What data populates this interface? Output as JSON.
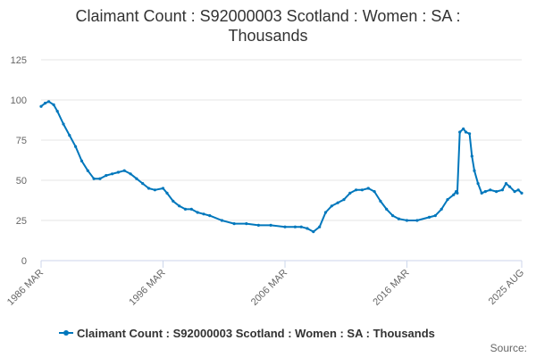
{
  "chart_data": {
    "type": "line",
    "title_lines": [
      "Claimant Count : S92000003 Scotland : Women : SA :",
      "Thousands"
    ],
    "x_tick_labels": [
      "1986 MAR",
      "1996 MAR",
      "2006 MAR",
      "2016 MAR",
      "2025 AUG"
    ],
    "x_tick_values": [
      1986.17,
      1996.17,
      2006.17,
      2016.17,
      2025.58
    ],
    "xlim": [
      1986.17,
      2025.58
    ],
    "ylim": [
      0,
      125
    ],
    "y_ticks": [
      0,
      25,
      50,
      75,
      100,
      125
    ],
    "grid": true,
    "legend_position": "bottom-center",
    "series": [
      {
        "name": "Claimant Count : S92000003 Scotland : Women : SA : Thousands",
        "color": "#0077bc",
        "x": [
          1986.17,
          1986.5,
          1986.8,
          1987.2,
          1987.5,
          1988.0,
          1988.5,
          1989.0,
          1989.5,
          1990.0,
          1990.5,
          1991.0,
          1991.5,
          1992.0,
          1992.5,
          1993.0,
          1993.5,
          1994.0,
          1994.5,
          1995.0,
          1995.5,
          1996.17,
          1996.5,
          1997.0,
          1997.5,
          1998.0,
          1998.5,
          1999.0,
          1999.5,
          2000.0,
          2001.0,
          2002.0,
          2003.0,
          2004.0,
          2005.0,
          2006.17,
          2007.0,
          2007.5,
          2008.0,
          2008.5,
          2009.0,
          2009.5,
          2010.0,
          2010.5,
          2011.0,
          2011.5,
          2012.0,
          2012.5,
          2013.0,
          2013.5,
          2014.0,
          2014.5,
          2015.0,
          2015.5,
          2016.17,
          2017.0,
          2018.0,
          2018.5,
          2019.0,
          2019.5,
          2020.0,
          2020.2,
          2020.3,
          2020.5,
          2020.8,
          2021.0,
          2021.3,
          2021.5,
          2021.7,
          2022.0,
          2022.3,
          2022.6,
          2023.0,
          2023.5,
          2024.0,
          2024.3,
          2024.6,
          2025.0,
          2025.3,
          2025.58
        ],
        "values": [
          96,
          98,
          99,
          97,
          93,
          85,
          78,
          71,
          62,
          56,
          51,
          51,
          53,
          54,
          55,
          56,
          54,
          51,
          48,
          45,
          44,
          45,
          42,
          37,
          34,
          32,
          32,
          30,
          29,
          28,
          25,
          23,
          23,
          22,
          22,
          21,
          21,
          21,
          20,
          18,
          21,
          30,
          34,
          36,
          38,
          42,
          44,
          44,
          45,
          43,
          37,
          32,
          28,
          26,
          25,
          25,
          27,
          28,
          32,
          38,
          41,
          43,
          42,
          80,
          82,
          80,
          79,
          65,
          56,
          48,
          42,
          43,
          44,
          43,
          44,
          48,
          46,
          43,
          44,
          42
        ]
      }
    ],
    "credits": "Source:"
  }
}
